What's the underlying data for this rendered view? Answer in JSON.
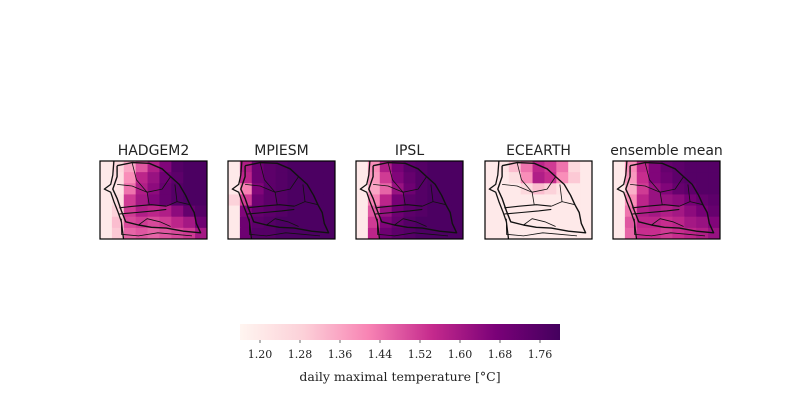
{
  "chart_data": {
    "type": "heatmap",
    "colormap": "RdPu-like",
    "color_stops": [
      "#fff5f0",
      "#fcd0d8",
      "#f884b4",
      "#c52a8d",
      "#7a0178",
      "#44005e"
    ],
    "panels": [
      {
        "title": "HADGEM2",
        "grid": [
          [
            1.2,
            1.26,
            1.36,
            1.48,
            1.58,
            1.66,
            1.76,
            1.78,
            1.78
          ],
          [
            1.2,
            1.24,
            1.4,
            1.56,
            1.62,
            1.7,
            1.74,
            1.78,
            1.78
          ],
          [
            1.2,
            1.22,
            1.44,
            1.58,
            1.64,
            1.72,
            1.76,
            1.78,
            1.78
          ],
          [
            1.2,
            1.24,
            1.52,
            1.6,
            1.66,
            1.72,
            1.76,
            1.78,
            1.78
          ],
          [
            1.2,
            1.28,
            1.52,
            1.58,
            1.56,
            1.58,
            1.64,
            1.72,
            1.76
          ],
          [
            1.2,
            1.32,
            1.5,
            1.52,
            1.5,
            1.52,
            1.56,
            1.6,
            1.7
          ],
          [
            1.2,
            1.3,
            1.46,
            1.48,
            1.46,
            1.48,
            1.5,
            1.52,
            1.6
          ]
        ]
      },
      {
        "title": "MPIESM",
        "grid": [
          [
            1.2,
            1.58,
            1.7,
            1.74,
            1.76,
            1.78,
            1.78,
            1.78,
            1.78
          ],
          [
            1.2,
            1.56,
            1.7,
            1.74,
            1.76,
            1.78,
            1.78,
            1.78,
            1.78
          ],
          [
            1.2,
            1.42,
            1.66,
            1.74,
            1.76,
            1.78,
            1.78,
            1.78,
            1.78
          ],
          [
            1.28,
            1.52,
            1.7,
            1.74,
            1.76,
            1.78,
            1.78,
            1.78,
            1.78
          ],
          [
            1.2,
            1.66,
            1.72,
            1.74,
            1.76,
            1.78,
            1.78,
            1.78,
            1.78
          ],
          [
            1.2,
            1.7,
            1.74,
            1.76,
            1.78,
            1.78,
            1.78,
            1.78,
            1.78
          ],
          [
            1.2,
            1.7,
            1.76,
            1.76,
            1.78,
            1.78,
            1.78,
            1.78,
            1.78
          ]
        ]
      },
      {
        "title": "IPSL",
        "grid": [
          [
            1.2,
            1.4,
            1.58,
            1.68,
            1.74,
            1.76,
            1.78,
            1.78,
            1.78
          ],
          [
            1.2,
            1.38,
            1.52,
            1.66,
            1.72,
            1.76,
            1.78,
            1.78,
            1.78
          ],
          [
            1.2,
            1.36,
            1.46,
            1.62,
            1.7,
            1.76,
            1.78,
            1.78,
            1.78
          ],
          [
            1.2,
            1.42,
            1.56,
            1.68,
            1.74,
            1.76,
            1.78,
            1.78,
            1.78
          ],
          [
            1.2,
            1.48,
            1.62,
            1.7,
            1.74,
            1.76,
            1.78,
            1.78,
            1.78
          ],
          [
            1.2,
            1.52,
            1.66,
            1.72,
            1.76,
            1.78,
            1.78,
            1.78,
            1.78
          ],
          [
            1.2,
            1.56,
            1.7,
            1.74,
            1.76,
            1.78,
            1.78,
            1.78,
            1.78
          ]
        ]
      },
      {
        "title": "ECEARTH",
        "grid": [
          [
            1.2,
            1.22,
            1.32,
            1.44,
            1.56,
            1.52,
            1.44,
            1.26,
            1.2
          ],
          [
            1.2,
            1.2,
            1.24,
            1.4,
            1.58,
            1.54,
            1.4,
            1.3,
            1.2
          ],
          [
            1.2,
            1.2,
            1.2,
            1.26,
            1.32,
            1.28,
            1.22,
            1.2,
            1.2
          ],
          [
            1.2,
            1.2,
            1.2,
            1.2,
            1.2,
            1.2,
            1.2,
            1.2,
            1.2
          ],
          [
            1.2,
            1.2,
            1.2,
            1.2,
            1.2,
            1.2,
            1.2,
            1.2,
            1.2
          ],
          [
            1.2,
            1.2,
            1.2,
            1.2,
            1.2,
            1.2,
            1.2,
            1.2,
            1.2
          ],
          [
            1.2,
            1.2,
            1.2,
            1.2,
            1.2,
            1.2,
            1.2,
            1.2,
            1.2
          ]
        ]
      },
      {
        "title": "ensemble mean",
        "grid": [
          [
            1.2,
            1.4,
            1.56,
            1.66,
            1.72,
            1.74,
            1.76,
            1.76,
            1.76
          ],
          [
            1.2,
            1.38,
            1.54,
            1.66,
            1.7,
            1.74,
            1.76,
            1.76,
            1.76
          ],
          [
            1.2,
            1.34,
            1.52,
            1.62,
            1.66,
            1.72,
            1.74,
            1.76,
            1.76
          ],
          [
            1.2,
            1.4,
            1.56,
            1.62,
            1.62,
            1.64,
            1.68,
            1.72,
            1.74
          ],
          [
            1.2,
            1.44,
            1.58,
            1.6,
            1.58,
            1.6,
            1.64,
            1.68,
            1.72
          ],
          [
            1.2,
            1.48,
            1.56,
            1.56,
            1.54,
            1.56,
            1.6,
            1.62,
            1.66
          ],
          [
            1.2,
            1.46,
            1.54,
            1.54,
            1.52,
            1.54,
            1.56,
            1.58,
            1.62
          ]
        ]
      }
    ],
    "colorbar": {
      "label": "daily maximal temperature [°C]",
      "vmin": 1.16,
      "vmax": 1.8,
      "ticks": [
        "1.20",
        "1.28",
        "1.36",
        "1.44",
        "1.52",
        "1.60",
        "1.68",
        "1.76"
      ],
      "orientation": "horizontal",
      "placement": "bottom-center"
    }
  }
}
